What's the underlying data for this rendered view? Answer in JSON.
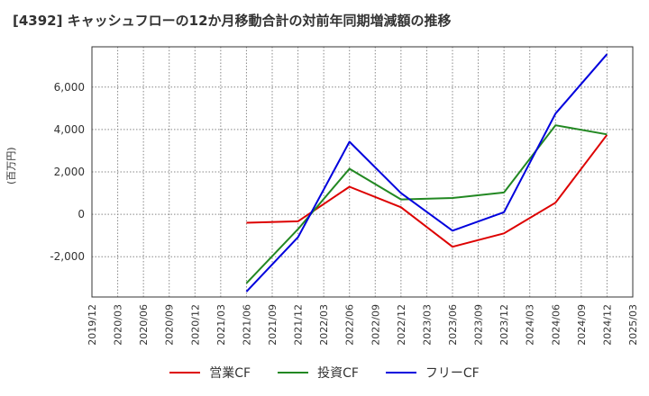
{
  "title": "[4392]  キャッシュフローの12か月移動合計の対前年同期増減額の推移",
  "chart_data": {
    "type": "line",
    "title": "[4392]  キャッシュフローの12か月移動合計の対前年同期増減額の推移",
    "xlabel": "",
    "ylabel": "(百万円)",
    "ylim": [
      -3900,
      7900
    ],
    "yticks": [
      -2000,
      0,
      2000,
      4000,
      6000
    ],
    "ytick_labels": [
      "-2,000",
      "0",
      "2,000",
      "4,000",
      "6,000"
    ],
    "categories": [
      "2019/12",
      "2020/03",
      "2020/06",
      "2020/09",
      "2020/12",
      "2021/03",
      "2021/06",
      "2021/09",
      "2021/12",
      "2022/03",
      "2022/06",
      "2022/09",
      "2022/12",
      "2023/03",
      "2023/06",
      "2023/09",
      "2023/12",
      "2024/03",
      "2024/06",
      "2024/09",
      "2024/12",
      "2025/03"
    ],
    "grid": true,
    "legend_position": "bottom",
    "series": [
      {
        "name": "営業CF",
        "color": "#dd0000",
        "x": [
          "2021/06",
          "2021/12",
          "2022/06",
          "2022/12",
          "2023/06",
          "2023/12",
          "2024/06",
          "2024/12"
        ],
        "values": [
          -400,
          -330,
          1300,
          330,
          -1530,
          -900,
          550,
          3750
        ]
      },
      {
        "name": "投資CF",
        "color": "#228822",
        "x": [
          "2021/06",
          "2021/12",
          "2022/06",
          "2022/12",
          "2023/06",
          "2023/12",
          "2024/06",
          "2024/12"
        ],
        "values": [
          -3250,
          -700,
          2150,
          700,
          770,
          1030,
          4200,
          3770
        ]
      },
      {
        "name": "フリーCF",
        "color": "#0000dd",
        "x": [
          "2021/06",
          "2021/12",
          "2022/06",
          "2022/12",
          "2023/06",
          "2023/12",
          "2024/06",
          "2024/12"
        ],
        "values": [
          -3650,
          -1080,
          3420,
          1000,
          -770,
          100,
          4750,
          7550
        ]
      }
    ]
  }
}
